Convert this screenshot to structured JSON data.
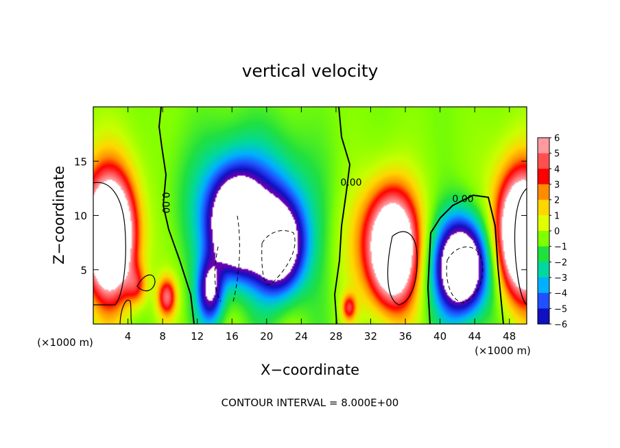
{
  "chart_data": {
    "type": "heatmap",
    "title": "vertical velocity",
    "xlabel": "X−coordinate",
    "ylabel": "Z−coordinate",
    "x_unit_left": "(×1000 m)",
    "x_unit_right": "(×1000 m)",
    "footer": "CONTOUR INTERVAL = 8.000E+00",
    "xlim": [
      0,
      50
    ],
    "ylim": [
      0,
      20
    ],
    "x_ticks": [
      "4",
      "8",
      "12",
      "16",
      "20",
      "24",
      "28",
      "32",
      "36",
      "40",
      "44",
      "48"
    ],
    "y_ticks": [
      "5",
      "10",
      "15"
    ],
    "colorbar": {
      "range": [
        -6,
        6
      ],
      "labels": [
        "6",
        "5",
        "4",
        "3",
        "2",
        "1",
        "0",
        "−1",
        "−2",
        "−3",
        "−4",
        "−5",
        "−6"
      ],
      "colors": [
        "#ff9aa0",
        "#ff5050",
        "#ff0000",
        "#ff8c00",
        "#ffd700",
        "#e0ff00",
        "#80ff00",
        "#20e040",
        "#00d8a0",
        "#00b0ff",
        "#2050ff",
        "#1010c0",
        "#6a00b0"
      ]
    },
    "contour_labels": [
      "0.00",
      "0.00",
      "0.00"
    ],
    "features": [
      {
        "type": "updraft",
        "x": 2,
        "z": 8,
        "w": 10
      },
      {
        "type": "updraft",
        "x": 34.5,
        "z": 6.5,
        "w": 9
      },
      {
        "type": "updraft",
        "x": 49.5,
        "z": 8,
        "w": 10
      },
      {
        "type": "downdraft",
        "x": 16.5,
        "z": 9,
        "w": -10
      },
      {
        "type": "downdraft",
        "x": 21.5,
        "z": 7,
        "w": -9
      },
      {
        "type": "downdraft",
        "x": 42.5,
        "z": 5,
        "w": -8
      }
    ]
  }
}
